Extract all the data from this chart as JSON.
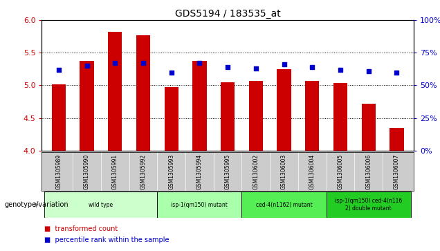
{
  "title": "GDS5194 / 183535_at",
  "samples": [
    "GSM1305989",
    "GSM1305990",
    "GSM1305991",
    "GSM1305992",
    "GSM1305993",
    "GSM1305994",
    "GSM1305995",
    "GSM1306002",
    "GSM1306003",
    "GSM1306004",
    "GSM1306005",
    "GSM1306006",
    "GSM1306007"
  ],
  "transformed_count": [
    5.02,
    5.38,
    5.82,
    5.77,
    4.97,
    5.38,
    5.05,
    5.07,
    5.25,
    5.07,
    5.04,
    4.72,
    4.35
  ],
  "percentile_rank": [
    62,
    65,
    67,
    67,
    60,
    67,
    64,
    63,
    66,
    64,
    62,
    61,
    60
  ],
  "ylim_left": [
    4.0,
    6.0
  ],
  "ylim_right": [
    0,
    100
  ],
  "y_ticks_left": [
    4.0,
    4.5,
    5.0,
    5.5,
    6.0
  ],
  "y_ticks_right": [
    0,
    25,
    50,
    75,
    100
  ],
  "groups": [
    {
      "label": "wild type",
      "indices": [
        0,
        1,
        2,
        3
      ],
      "color": "#ccffcc"
    },
    {
      "label": "isp-1(qm150) mutant",
      "indices": [
        4,
        5,
        6
      ],
      "color": "#aaffaa"
    },
    {
      "label": "ced-4(n1162) mutant",
      "indices": [
        7,
        8,
        9
      ],
      "color": "#55ee55"
    },
    {
      "label": "isp-1(qm150) ced-4(n116\n2) double mutant",
      "indices": [
        10,
        11,
        12
      ],
      "color": "#22cc22"
    }
  ],
  "bar_color": "#cc0000",
  "marker_color": "#0000cc",
  "bar_bottom": 4.0,
  "legend_label_bar": "transformed count",
  "legend_label_marker": "percentile rank within the sample",
  "genotype_label": "genotype/variation",
  "left_tick_color": "#cc0000",
  "right_tick_color": "#0000cc",
  "sample_bg_color": "#cccccc",
  "bar_width": 0.5
}
